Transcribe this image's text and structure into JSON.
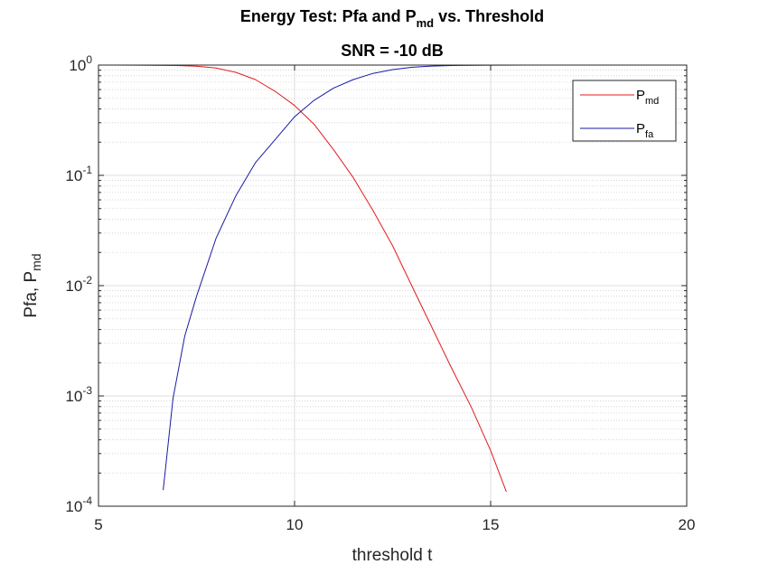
{
  "chart_data": {
    "type": "line",
    "title": {
      "line1_pre": "Energy Test: Pfa and P",
      "line1_sub": "md",
      "line1_post": " vs. Threshold",
      "line2": "SNR = -10 dB"
    },
    "xlabel": "threshold t",
    "ylabel": {
      "pre": "Pfa, P",
      "sub": "md"
    },
    "xscale": "linear",
    "yscale": "log",
    "xlim": [
      5,
      20
    ],
    "ylim": [
      0.0001,
      1
    ],
    "xticks": [
      5,
      10,
      15,
      20
    ],
    "yticks": [
      {
        "value": 0.0001,
        "base": "10",
        "exp": "-4"
      },
      {
        "value": 0.001,
        "base": "10",
        "exp": "-3"
      },
      {
        "value": 0.01,
        "base": "10",
        "exp": "-2"
      },
      {
        "value": 0.1,
        "base": "10",
        "exp": "-1"
      },
      {
        "value": 1,
        "base": "10",
        "exp": "0"
      }
    ],
    "grid": true,
    "minor_grid_y": true,
    "legend_position": "top-right",
    "series": [
      {
        "name": {
          "base": "P",
          "sub": "md"
        },
        "color": "#e41a1c",
        "x": [
          5.0,
          6.0,
          7.0,
          7.5,
          8.0,
          8.5,
          9.0,
          9.5,
          10.0,
          10.5,
          11.0,
          11.5,
          12.0,
          12.5,
          13.0,
          13.5,
          14.0,
          14.5,
          15.0,
          15.4
        ],
        "y": [
          1.0,
          0.999,
          0.99,
          0.975,
          0.94,
          0.86,
          0.74,
          0.58,
          0.43,
          0.29,
          0.17,
          0.095,
          0.048,
          0.023,
          0.0098,
          0.0042,
          0.0018,
          0.0008,
          0.00032,
          0.000135
        ]
      },
      {
        "name": {
          "base": "P",
          "sub": "fa"
        },
        "color": "#1a1aa6",
        "x": [
          6.65,
          6.9,
          7.2,
          7.5,
          8.0,
          8.5,
          9.0,
          9.5,
          10.0,
          10.5,
          11.0,
          11.5,
          12.0,
          12.5,
          13.0,
          13.5,
          14.0,
          15.0,
          16.0,
          17.0,
          18.0,
          19.4
        ],
        "y": [
          0.00014,
          0.00095,
          0.0035,
          0.008,
          0.027,
          0.065,
          0.13,
          0.21,
          0.34,
          0.48,
          0.62,
          0.74,
          0.84,
          0.91,
          0.955,
          0.98,
          0.99,
          0.998,
          1.0,
          1.0,
          1.0,
          1.0
        ]
      }
    ]
  }
}
